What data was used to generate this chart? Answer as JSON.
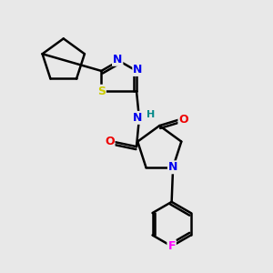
{
  "bg_color": "#e8e8e8",
  "atom_colors": {
    "C": "#000000",
    "N": "#0000ee",
    "O": "#ee0000",
    "S": "#cccc00",
    "F": "#ff00ff",
    "H": "#008888"
  },
  "bond_color": "#000000",
  "bond_width": 1.8,
  "figsize": [
    3.0,
    3.0
  ],
  "dpi": 100
}
